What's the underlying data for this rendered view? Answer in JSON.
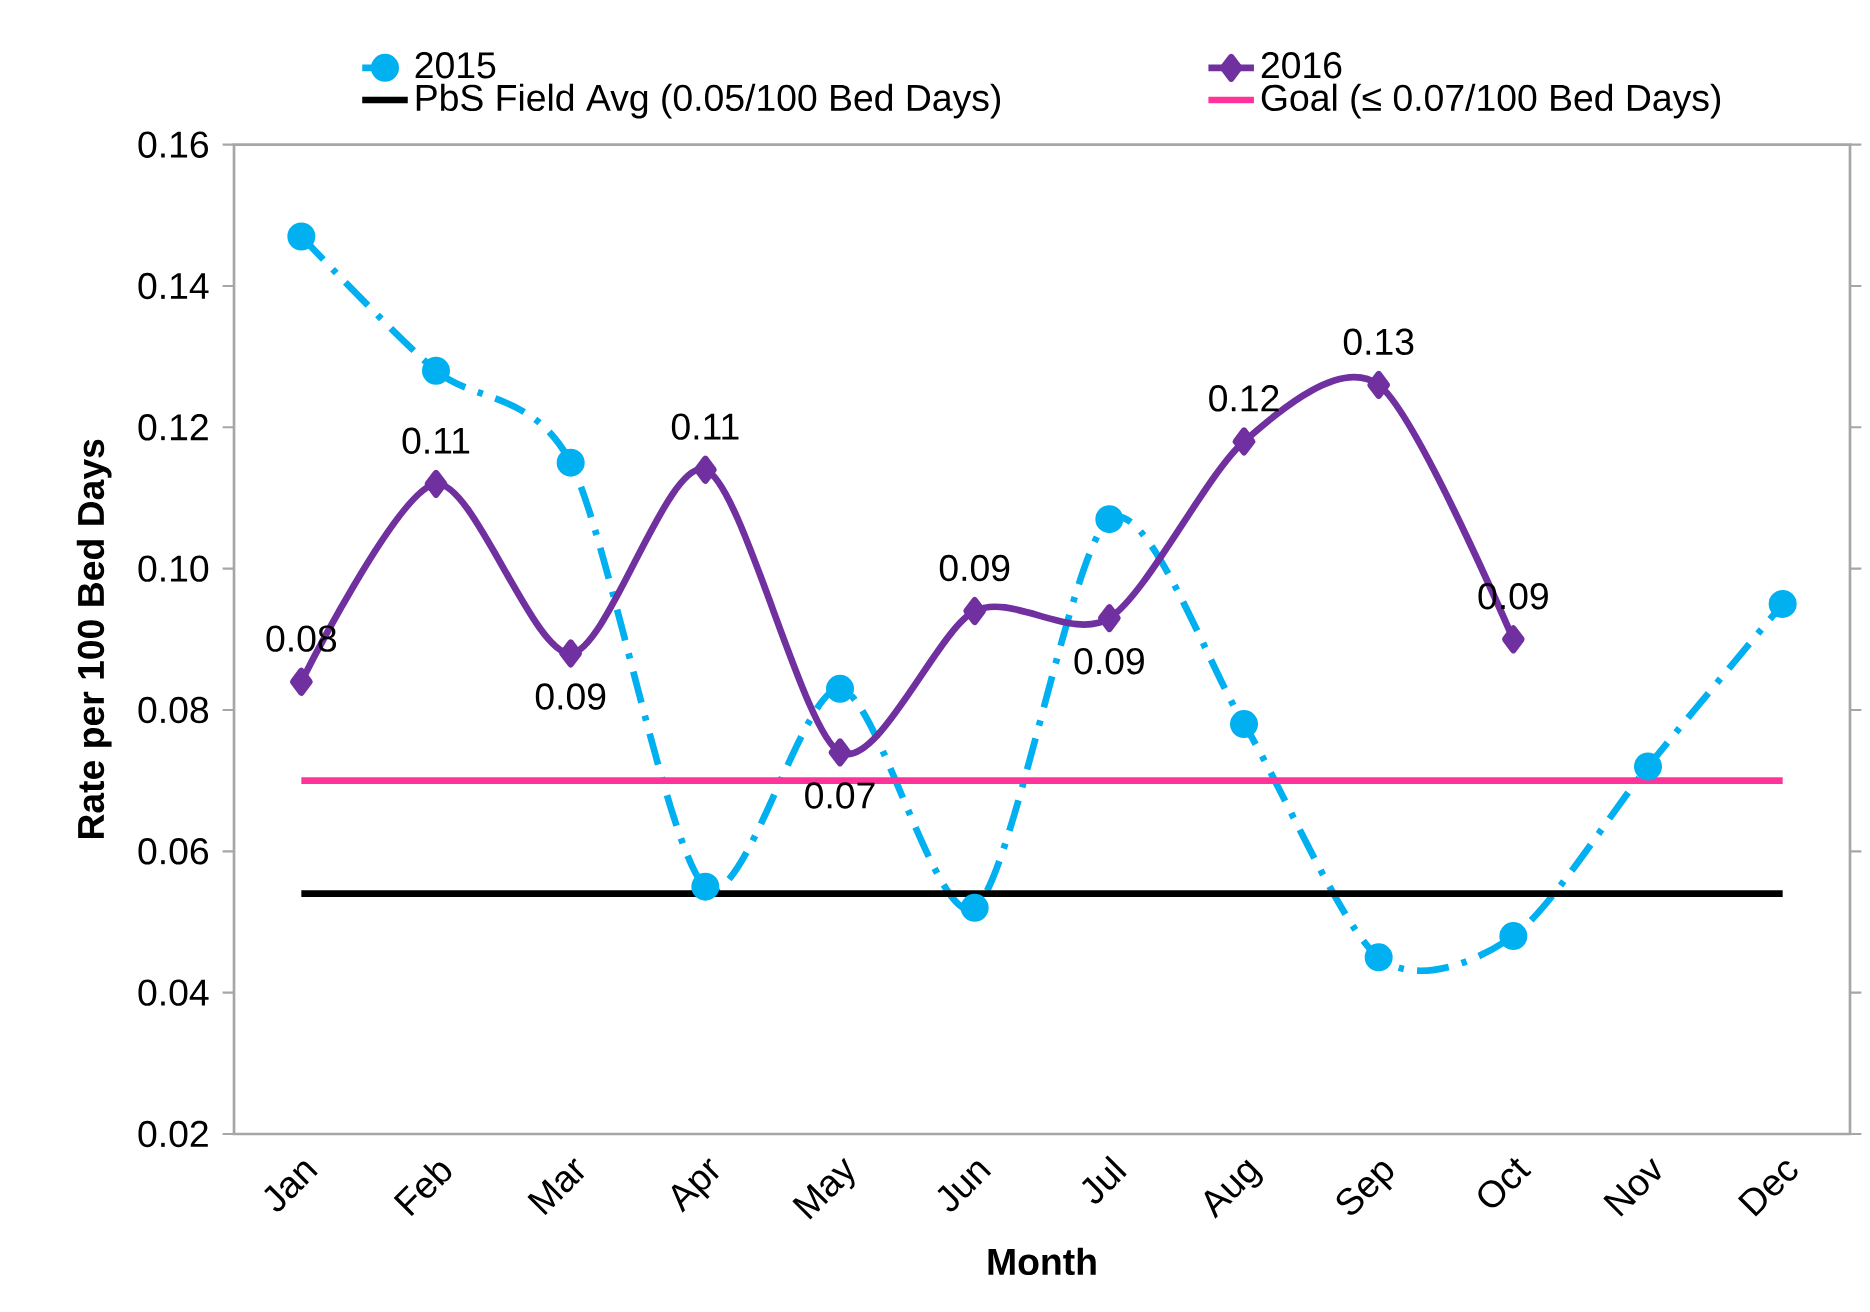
{
  "chart_data": {
    "type": "line",
    "xlabel": "Month",
    "ylabel": "Rate per 100 Bed Days",
    "categories": [
      "Jan",
      "Feb",
      "Mar",
      "Apr",
      "May",
      "Jun",
      "Jul",
      "Aug",
      "Sep",
      "Oct",
      "Nov",
      "Dec"
    ],
    "series": [
      {
        "name": "2015",
        "type": "line",
        "color": "#00b0f0",
        "line_style": "dashed",
        "marker": "circle",
        "values": [
          0.147,
          0.128,
          0.115,
          0.055,
          0.083,
          0.052,
          0.107,
          0.078,
          0.045,
          0.048,
          0.072,
          0.095
        ]
      },
      {
        "name": "2016",
        "type": "line",
        "color": "#7030a0",
        "line_style": "solid",
        "marker": "diamond",
        "values": [
          0.084,
          0.112,
          0.088,
          0.114,
          0.074,
          0.094,
          0.093,
          0.118,
          0.126,
          0.09,
          null,
          null
        ],
        "value_labels": [
          "0.08",
          "0.11",
          "0.09",
          "0.11",
          "0.07",
          "0.09",
          "0.09",
          "0.12",
          "0.13",
          "0.09",
          null,
          null
        ]
      }
    ],
    "ref_lines": [
      {
        "axis": "y",
        "value": 0.054,
        "label": "PbS Field Avg (0.05/100 Bed Days)",
        "color": "#000000",
        "line_style": "solid"
      },
      {
        "axis": "y",
        "value": 0.07,
        "label": "Goal (≤ 0.07/100 Bed Days)",
        "color": "#ff3399",
        "line_style": "solid"
      }
    ],
    "ylim": [
      0.02,
      0.16
    ],
    "yticks": [
      {
        "value": 0.02,
        "label": "0.02"
      },
      {
        "value": 0.04,
        "label": "0.04"
      },
      {
        "value": 0.06,
        "label": "0.06"
      },
      {
        "value": 0.08,
        "label": "0.08"
      },
      {
        "value": 0.1,
        "label": "0.10"
      },
      {
        "value": 0.12,
        "label": "0.12"
      },
      {
        "value": 0.14,
        "label": "0.14"
      },
      {
        "value": 0.16,
        "label": "0.16"
      }
    ],
    "grid": false,
    "legend": "top"
  }
}
